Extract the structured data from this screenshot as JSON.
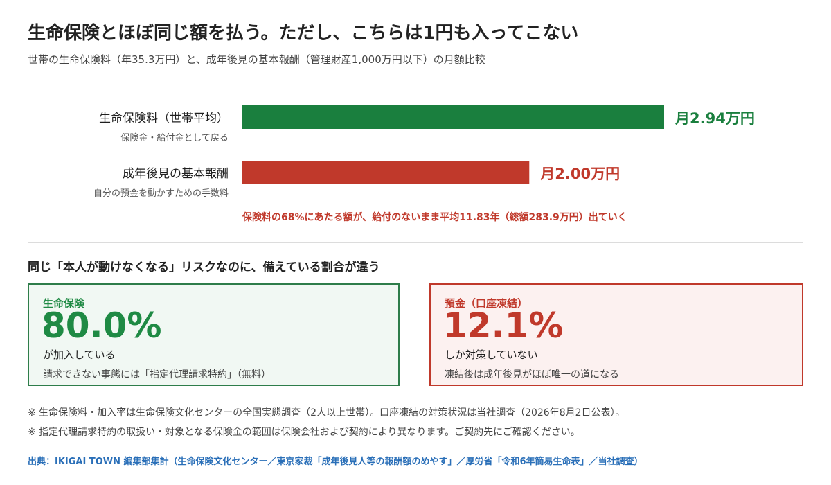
{
  "header": {
    "title": "生命保険とほぼ同じ額を払う。ただし、こちらは1円も入ってこない",
    "subtitle": "世帯の生命保険料（年35.3万円）と、成年後見の基本報酬（管理財産1,000万円以下）の月額比較"
  },
  "chart_data": {
    "type": "bar",
    "orientation": "horizontal",
    "categories": [
      "生命保険料（世帯平均）",
      "成年後見の基本報酬"
    ],
    "category_notes": [
      "保険金・給付金として戻る",
      "自分の預金を動かすための手数料"
    ],
    "values": [
      2.94,
      2.0
    ],
    "value_labels": [
      "月2.94万円",
      "月2.00万円"
    ],
    "unit": "万円/月",
    "colors": [
      "#1a7f3e",
      "#c0392b"
    ],
    "xlim": [
      0,
      3.5
    ],
    "grid": false,
    "legend": "none",
    "annotation": "保険料の68%にあたる額が、給付のないまま平均11.83年（総額283.9万円）出ていく",
    "annotation_color": "#c0392b"
  },
  "comparison": {
    "heading": "同じ「本人が動けなくなる」リスクなのに、備えている割合が違う",
    "left": {
      "label": "生命保険",
      "value": "80.0%",
      "desc": "が加入している",
      "note": "請求できない事態には「指定代理請求特約」（無料）"
    },
    "right": {
      "label": "預金（口座凍結）",
      "value": "12.1%",
      "desc": "しか対策していない",
      "note": "凍結後は成年後見がほぼ唯一の道になる"
    }
  },
  "footnotes": [
    "※ 生命保険料・加入率は生命保険文化センターの全国実態調査（2人以上世帯）。口座凍結の対策状況は当社調査（2026年8月2日公表）。",
    "※ 指定代理請求特約の取扱い・対象となる保険金の範囲は保険会社および契約により異なります。ご契約先にご確認ください。"
  ],
  "source": "出典：IKIGAI TOWN 編集部集計（生命保険文化センター／東京家裁「成年後見人等の報酬額のめやす」／厚労省「令和6年簡易生命表」／当社調査）"
}
